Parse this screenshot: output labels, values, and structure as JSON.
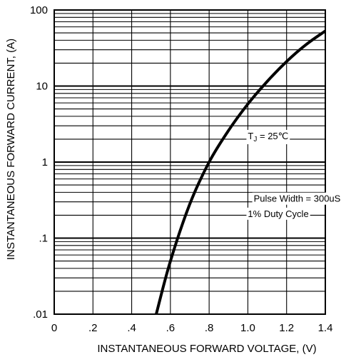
{
  "chart_data": {
    "type": "line",
    "title": "",
    "xlabel": "INSTANTANEOUS FORWARD VOLTAGE, (V)",
    "ylabel": "INSTANTANEOUS FORWARD CURRENT, (A)",
    "xlim": [
      0,
      1.4
    ],
    "ylim": [
      0.01,
      100
    ],
    "y_scale": "log",
    "grid": true,
    "x_ticks": [
      0,
      0.2,
      0.4,
      0.6,
      0.8,
      1.0,
      1.2,
      1.4
    ],
    "x_tick_labels": [
      "0",
      ".2",
      ".4",
      ".6",
      ".8",
      "1.0",
      "1.2",
      "1.4"
    ],
    "y_ticks": [
      0.01,
      0.1,
      1,
      10,
      100
    ],
    "y_tick_labels": [
      ".01",
      ".1",
      "1",
      "10",
      "100"
    ],
    "series": [
      {
        "name": "",
        "x": [
          0.527,
          0.6,
          0.7,
          0.8,
          0.9,
          1.0,
          1.1,
          1.2,
          1.3,
          1.4
        ],
        "y": [
          0.01,
          0.05,
          0.28,
          1.0,
          2.6,
          5.8,
          11.5,
          21,
          35,
          53
        ]
      }
    ],
    "annotations": [
      {
        "id": "tj",
        "prefix": "T",
        "subscript": "J",
        "text": " = 25℃",
        "x": 1.0,
        "y": 2.0
      },
      {
        "id": "pulse",
        "text": "Pulse Width = 300uS",
        "x": 1.03,
        "y": 0.3
      },
      {
        "id": "duty",
        "text": "1% Duty Cycle",
        "x": 1.0,
        "y": 0.19
      }
    ],
    "colors": {
      "line": "#000000",
      "grid": "#000000",
      "background": "#ffffff"
    }
  }
}
